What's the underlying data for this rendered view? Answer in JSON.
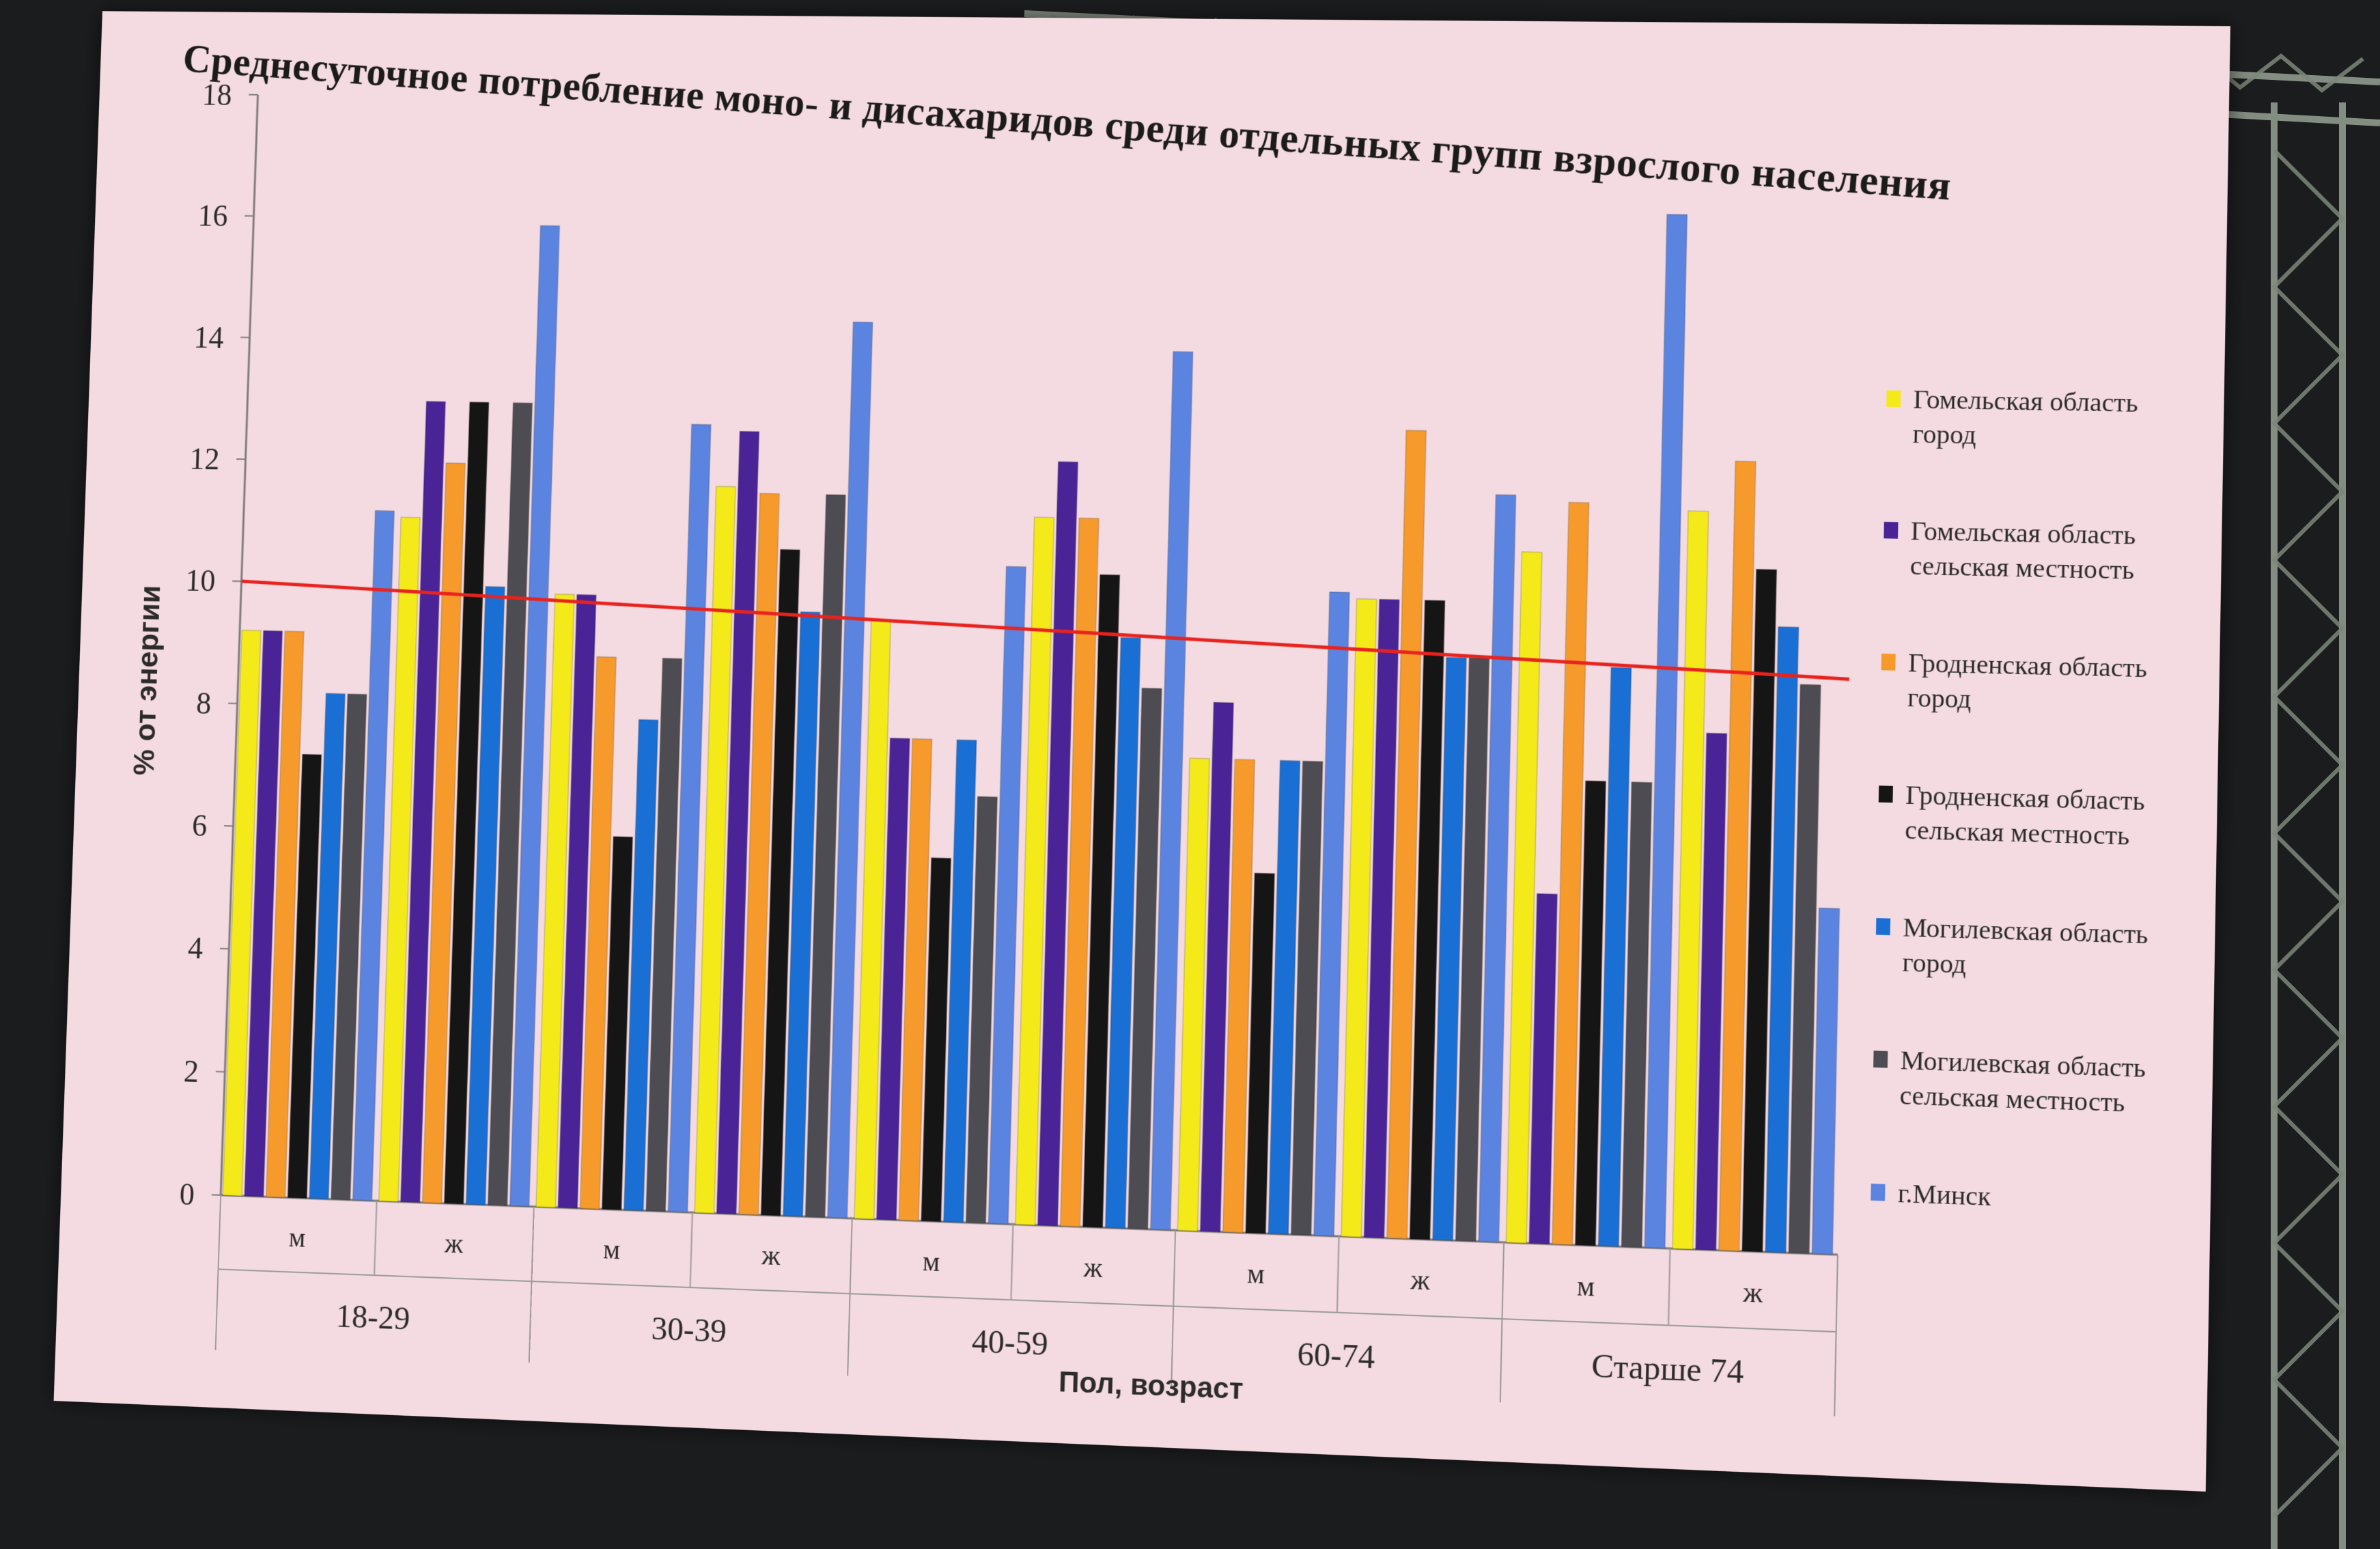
{
  "slide": {
    "background": "#f4dbe1",
    "reference_line_color": "#e8231e"
  },
  "chart_data": {
    "type": "bar",
    "title": "Среднесуточное потребление моно- и дисахаридов среди отдельных групп взрослого населения",
    "xlabel": "Пол, возраст",
    "ylabel": "% от энергии",
    "ylim": [
      0,
      18
    ],
    "yticks": [
      "0",
      "2",
      "4",
      "6",
      "8",
      "10",
      "12",
      "14",
      "16",
      "18"
    ],
    "grid": false,
    "legend_position": "right",
    "categories": [
      "м",
      "ж",
      "м",
      "ж",
      "м",
      "ж",
      "м",
      "ж",
      "м",
      "ж"
    ],
    "groups": [
      {
        "label": "18-29",
        "span": 2
      },
      {
        "label": "30-39",
        "span": 2
      },
      {
        "label": "40-59",
        "span": 2
      },
      {
        "label": "60-74",
        "span": 2
      },
      {
        "label": "Старше 74",
        "span": 2
      }
    ],
    "reference_line": {
      "start": 10.0,
      "end": 9.0
    },
    "series": [
      {
        "name": "Гомельская область город",
        "color": "#f4ea1a",
        "values": [
          9.2,
          11.1,
          9.9,
          11.7,
          9.6,
          11.3,
          7.5,
          10.1,
          10.9,
          11.6
        ]
      },
      {
        "name": "Гомельская область сельская местность",
        "color": "#4a2397",
        "values": [
          9.2,
          13.0,
          9.9,
          12.6,
          7.7,
          12.2,
          8.4,
          10.1,
          5.5,
          8.1
        ]
      },
      {
        "name": "Гродненская область город",
        "color": "#f79a2c",
        "values": [
          9.2,
          12.0,
          8.9,
          11.6,
          7.7,
          11.3,
          7.5,
          12.8,
          11.7,
          12.4
        ]
      },
      {
        "name": "Гродненская область сельская местность",
        "color": "#151515",
        "values": [
          7.2,
          13.0,
          6.0,
          10.7,
          5.8,
          10.4,
          5.7,
          10.1,
          7.3,
          10.7
        ]
      },
      {
        "name": "Могилевская область город",
        "color": "#1a6fd4",
        "values": [
          8.2,
          10.0,
          7.9,
          9.7,
          7.7,
          9.4,
          7.5,
          9.2,
          9.1,
          9.8
        ]
      },
      {
        "name": "Могилевская область сельская местность",
        "color": "#4c4c52",
        "values": [
          8.2,
          13.0,
          8.9,
          11.6,
          6.8,
          8.6,
          7.5,
          9.2,
          7.3,
          8.9
        ]
      },
      {
        "name": "г.Минск",
        "color": "#5b84e0",
        "values": [
          11.2,
          15.9,
          12.7,
          14.4,
          10.5,
          14.0,
          10.2,
          11.8,
          16.3,
          5.4
        ]
      }
    ]
  }
}
